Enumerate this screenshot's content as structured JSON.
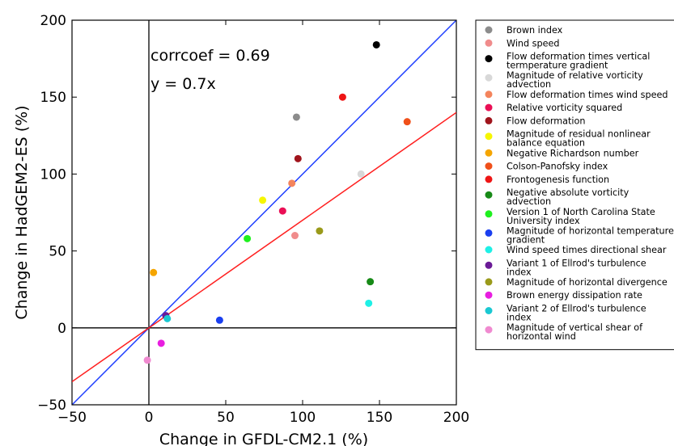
{
  "chart_data": {
    "type": "scatter",
    "title": "",
    "xlabel": "Change in GFDL-CM2.1 (%)",
    "ylabel": "Change in HadGEM2-ES (%)",
    "xlim": [
      -50,
      200
    ],
    "ylim": [
      -50,
      200
    ],
    "xticks": [
      "−50",
      "0",
      "50",
      "100",
      "150",
      "200"
    ],
    "yticks": [
      "−50",
      "0",
      "50",
      "100",
      "150",
      "200"
    ],
    "grid": false,
    "legend_position": "right, outside plot",
    "annotations": [
      "corrcoef = 0.69",
      "y = 0.7x"
    ],
    "reference_lines": [
      {
        "name": "1:1 line",
        "slope": 1.0,
        "color": "#1f3fff"
      },
      {
        "name": "fit",
        "slope": 0.7,
        "color": "#ff2020"
      }
    ],
    "series": [
      {
        "name": "Brown index",
        "color": "#8c8c8c",
        "x": 96,
        "y": 137,
        "label": [
          "Brown index"
        ]
      },
      {
        "name": "Wind speed",
        "color": "#f08c8c",
        "x": 95,
        "y": 60,
        "label": [
          "Wind speed"
        ]
      },
      {
        "name": "Flow deformation times vertical termperature gradient",
        "color": "#000000",
        "x": 148,
        "y": 184,
        "label": [
          "Flow deformation times vertical",
          "termperature gradient"
        ]
      },
      {
        "name": "Magnitude of relative vorticity advection",
        "color": "#d8d8d8",
        "x": 138,
        "y": 100,
        "label": [
          "Magnitude of relative vorticity",
          "advection"
        ]
      },
      {
        "name": "Flow deformation times wind speed",
        "color": "#f4845c",
        "x": 93,
        "y": 94,
        "label": [
          "Flow deformation times wind speed"
        ]
      },
      {
        "name": "Relative vorticity squared",
        "color": "#ea0f55",
        "x": 87,
        "y": 76,
        "label": [
          "Relative vorticity squared"
        ]
      },
      {
        "name": "Flow deformation",
        "color": "#a0141c",
        "x": 97,
        "y": 110,
        "label": [
          "Flow deformation"
        ]
      },
      {
        "name": "Magnitude of residual nonlinear balance equation",
        "color": "#f6f600",
        "x": 74,
        "y": 83,
        "label": [
          "Magnitude of residual nonlinear",
          "balance equation"
        ]
      },
      {
        "name": "Negative Richardson number",
        "color": "#f5a500",
        "x": 3,
        "y": 36,
        "label": [
          "Negative Richardson number"
        ]
      },
      {
        "name": "Colson-Panofsky index",
        "color": "#f0501a",
        "x": 168,
        "y": 134,
        "label": [
          "Colson-Panofsky index"
        ]
      },
      {
        "name": "Frontogenesis function",
        "color": "#ee1515",
        "x": 126,
        "y": 150,
        "label": [
          "Frontogenesis function"
        ]
      },
      {
        "name": "Negative absolute vorticity advection",
        "color": "#178a17",
        "x": 144,
        "y": 30,
        "label": [
          "Negative absolute vorticity",
          "advection"
        ]
      },
      {
        "name": "Version 1 of North Carolina State University index",
        "color": "#1ef01e",
        "x": 64,
        "y": 58,
        "label": [
          "Version 1 of North Carolina State",
          "University index"
        ]
      },
      {
        "name": "Magnitude of horizontal temperature gradient",
        "color": "#1a3ff0",
        "x": 46,
        "y": 5,
        "label": [
          "Magnitude of horizontal temperature",
          "gradient"
        ]
      },
      {
        "name": "Wind speed times directional shear",
        "color": "#1ef0e6",
        "x": 143,
        "y": 16,
        "label": [
          "Wind speed times directional shear"
        ]
      },
      {
        "name": "Variant 1 of Ellrod's turbulence index",
        "color": "#6a1a96",
        "x": 11,
        "y": 8,
        "label": [
          "Variant 1 of Ellrod's turbulence",
          "index"
        ]
      },
      {
        "name": "Magnitude of horizontal divergence",
        "color": "#9a9a1a",
        "x": 111,
        "y": 63,
        "label": [
          "Magnitude of horizontal divergence"
        ]
      },
      {
        "name": "Brown energy dissipation rate",
        "color": "#e81ee0",
        "x": 8,
        "y": -10,
        "label": [
          "Brown energy dissipation rate"
        ]
      },
      {
        "name": "Variant 2 of Ellrod's turbulence index",
        "color": "#1ac8d2",
        "x": 12,
        "y": 6,
        "label": [
          "Variant 2 of Ellrod's turbulence",
          "index"
        ]
      },
      {
        "name": "Magnitude of vertical shear of horizontal wind",
        "color": "#f08ad0",
        "x": -1,
        "y": -21,
        "label": [
          "Magnitude of vertical shear of",
          "horizontal wind"
        ]
      }
    ]
  }
}
